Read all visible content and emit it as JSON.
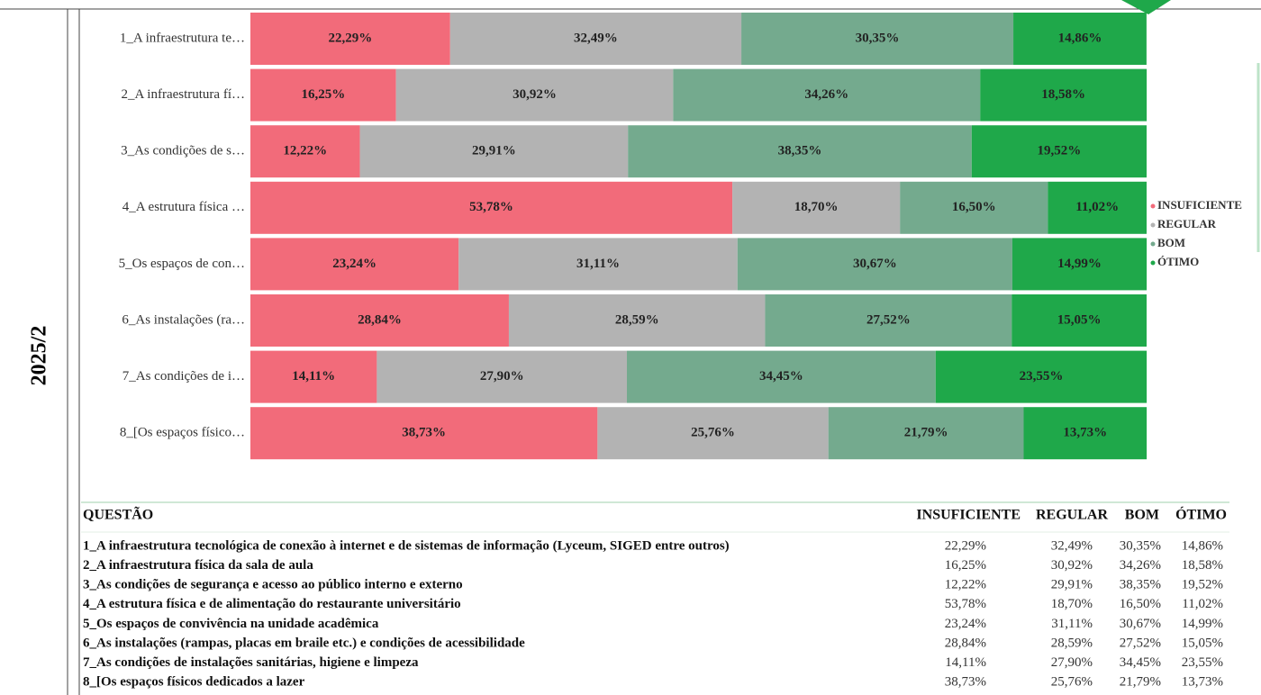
{
  "period": "2025/2",
  "chart_data": {
    "type": "bar",
    "orientation": "horizontal",
    "stacked": true,
    "categories": [
      "1_A infraestrutura te…",
      "2_A infraestrutura fí…",
      "3_As condições de s…",
      "4_A estrutura física …",
      "5_Os espaços de con…",
      "6_As instalações (ra…",
      "7_As condições de i…",
      "8_[Os espaços físico…"
    ],
    "xlim": [
      0,
      100
    ],
    "series": [
      {
        "name": "INSUFICIENTE",
        "color": "#f26b7a",
        "values": [
          22.29,
          16.25,
          12.22,
          53.78,
          23.24,
          28.84,
          14.11,
          38.73
        ],
        "value_labels": [
          "22,29%",
          "16,25%",
          "12,22%",
          "53,78%",
          "23,24%",
          "28,84%",
          "14,11%",
          "38,73%"
        ]
      },
      {
        "name": "REGULAR",
        "color": "#b3b3b3",
        "values": [
          32.49,
          30.92,
          29.91,
          18.7,
          31.11,
          28.59,
          27.9,
          25.76
        ],
        "value_labels": [
          "32,49%",
          "30,92%",
          "29,91%",
          "18,70%",
          "31,11%",
          "28,59%",
          "27,90%",
          "25,76%"
        ]
      },
      {
        "name": "BOM",
        "color": "#74aa8e",
        "values": [
          30.35,
          34.26,
          38.35,
          16.5,
          30.67,
          27.52,
          34.45,
          21.79
        ],
        "value_labels": [
          "30,35%",
          "34,26%",
          "38,35%",
          "16,50%",
          "30,67%",
          "27,52%",
          "34,45%",
          "21,79%"
        ]
      },
      {
        "name": "ÓTIMO",
        "color": "#1fa84a",
        "values": [
          14.86,
          18.58,
          19.52,
          11.02,
          14.99,
          15.05,
          23.55,
          13.73
        ],
        "value_labels": [
          "14,86%",
          "18,58%",
          "19,52%",
          "11,02%",
          "14,99%",
          "15,05%",
          "23,55%",
          "13,73%"
        ]
      }
    ],
    "legend": "right"
  },
  "table": {
    "header": [
      "QUESTÃO",
      "INSUFICIENTE",
      "REGULAR",
      "BOM",
      "ÓTIMO"
    ],
    "rows": [
      [
        "1_A infraestrutura tecnológica de conexão à internet e de sistemas de informação (Lyceum, SIGED entre outros)",
        "22,29%",
        "32,49%",
        "30,35%",
        "14,86%"
      ],
      [
        "2_A infraestrutura física da sala de aula",
        "16,25%",
        "30,92%",
        "34,26%",
        "18,58%"
      ],
      [
        "3_As condições de segurança e acesso ao público interno e externo",
        "12,22%",
        "29,91%",
        "38,35%",
        "19,52%"
      ],
      [
        "4_A estrutura física e de alimentação do restaurante universitário",
        "53,78%",
        "18,70%",
        "16,50%",
        "11,02%"
      ],
      [
        "5_Os espaços de convivência na unidade acadêmica",
        "23,24%",
        "31,11%",
        "30,67%",
        "14,99%"
      ],
      [
        "6_As instalações (rampas, placas em braile etc.) e condições de acessibilidade",
        "28,84%",
        "28,59%",
        "27,52%",
        "15,05%"
      ],
      [
        "7_As condições de instalações sanitárias, higiene e limpeza",
        "14,11%",
        "27,90%",
        "34,45%",
        "23,55%"
      ],
      [
        "8_[Os espaços físicos dedicados a lazer",
        "38,73%",
        "25,76%",
        "21,79%",
        "13,73%"
      ]
    ]
  }
}
